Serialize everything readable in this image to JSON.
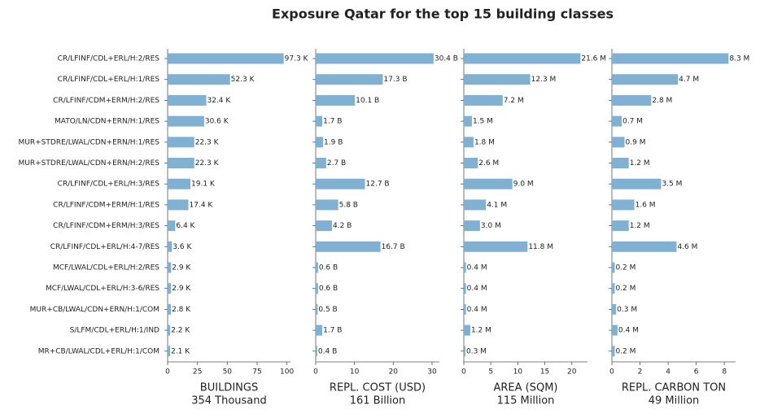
{
  "title": "Exposure Qatar for the top 15 building classes",
  "chart_data": [
    {
      "type": "barh",
      "color": "#80b1d3",
      "categories": [
        "CR/LFINF/CDL+ERL/H:2/RES",
        "CR/LFINF/CDL+ERL/H:1/RES",
        "CR/LFINF/CDM+ERM/H:2/RES",
        "MATO/LN/CDN+ERN/H:1/RES",
        "MUR+STDRE/LWAL/CDN+ERN/H:1/RES",
        "MUR+STDRE/LWAL/CDN+ERN/H:2/RES",
        "CR/LFINF/CDL+ERL/H:3/RES",
        "CR/LFINF/CDM+ERM/H:1/RES",
        "CR/LFINF/CDM+ERM/H:3/RES",
        "CR/LFINF/CDL+ERL/H:4-7/RES",
        "MCF/LWAL/CDL+ERL/H:2/RES",
        "MCF/LWAL/CDL+ERL/H:3-6/RES",
        "MUR+CB/LWAL/CDN+ERN/H:1/COM",
        "S/LFM/CDL+ERL/H:1/IND",
        "MR+CB/LWAL/CDL+ERL/H:1/COM"
      ],
      "values": [
        97.3,
        52.3,
        32.4,
        30.6,
        22.3,
        22.3,
        19.1,
        17.4,
        6.4,
        3.6,
        2.9,
        2.9,
        2.8,
        2.2,
        2.1
      ],
      "value_labels": [
        "97.3 K",
        "52.3 K",
        "32.4 K",
        "30.6 K",
        "22.3 K",
        "22.3 K",
        "19.1 K",
        "17.4 K",
        "6.4 K",
        "3.6 K",
        "2.9 K",
        "2.9 K",
        "2.8 K",
        "2.2 K",
        "2.1 K"
      ],
      "xlabel": "BUILDINGS",
      "xlabel_total": "354 Thousand",
      "xlim": [
        0,
        103
      ],
      "xticks": [
        0,
        25,
        50,
        75,
        100
      ]
    },
    {
      "type": "barh",
      "color": "#80b1d3",
      "values": [
        30.4,
        17.3,
        10.1,
        1.7,
        1.9,
        2.7,
        12.7,
        5.8,
        4.2,
        16.7,
        0.6,
        0.6,
        0.5,
        1.7,
        0.4
      ],
      "value_labels": [
        "30.4 B",
        "17.3 B",
        "10.1 B",
        "1.7 B",
        "1.9 B",
        "2.7 B",
        "12.7 B",
        "5.8 B",
        "4.2 B",
        "16.7 B",
        "0.6 B",
        "0.6 B",
        "0.5 B",
        "1.7 B",
        "0.4 B"
      ],
      "xlabel": "REPL. COST (USD)",
      "xlabel_total": "161 Billion",
      "xlim": [
        0,
        31.9
      ],
      "xticks": [
        0,
        10,
        20,
        30
      ]
    },
    {
      "type": "barh",
      "color": "#80b1d3",
      "values": [
        21.6,
        12.3,
        7.2,
        1.5,
        1.8,
        2.6,
        9.0,
        4.1,
        3.0,
        11.8,
        0.4,
        0.4,
        0.4,
        1.2,
        0.3
      ],
      "value_labels": [
        "21.6 M",
        "12.3 M",
        "7.2 M",
        "1.5 M",
        "1.8 M",
        "2.6 M",
        "9.0 M",
        "4.1 M",
        "3.0 M",
        "11.8 M",
        "0.4 M",
        "0.4 M",
        "0.4 M",
        "1.2 M",
        "0.3 M"
      ],
      "xlabel": "AREA (SQM)",
      "xlabel_total": "115 Million",
      "xlim": [
        0,
        22.9
      ],
      "xticks": [
        0,
        5,
        10,
        15,
        20
      ]
    },
    {
      "type": "barh",
      "color": "#80b1d3",
      "values": [
        8.3,
        4.7,
        2.8,
        0.7,
        0.9,
        1.2,
        3.5,
        1.6,
        1.2,
        4.6,
        0.2,
        0.2,
        0.3,
        0.4,
        0.2
      ],
      "value_labels": [
        "8.3 M",
        "4.7 M",
        "2.8 M",
        "0.7 M",
        "0.9 M",
        "1.2 M",
        "3.5 M",
        "1.6 M",
        "1.2 M",
        "4.6 M",
        "0.2 M",
        "0.2 M",
        "0.3 M",
        "0.4 M",
        "0.2 M"
      ],
      "xlabel": "REPL. CARBON TON",
      "xlabel_total": "49 Million",
      "xlim": [
        0,
        8.8
      ],
      "xticks": [
        0,
        2,
        4,
        6,
        8
      ]
    }
  ]
}
